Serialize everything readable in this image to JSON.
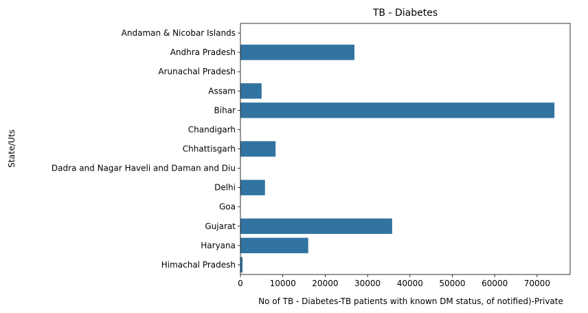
{
  "chart_data": {
    "type": "bar",
    "orientation": "horizontal",
    "title": "TB - Diabetes",
    "xlabel": "No of TB - Diabetes-TB patients with known DM status, of notified)-Private",
    "ylabel": "State/Uts",
    "categories": [
      "Andaman & Nicobar Islands",
      "Andhra Pradesh",
      "Arunachal Pradesh",
      "Assam",
      "Bihar",
      "Chandigarh",
      "Chhattisgarh",
      "Dadra and Nagar Haveli and Daman and Diu",
      "Delhi",
      "Goa",
      "Gujarat",
      "Haryana",
      "Himachal Pradesh"
    ],
    "values": [
      0,
      26900,
      0,
      5000,
      74100,
      0,
      8300,
      0,
      5800,
      0,
      35800,
      16000,
      500
    ],
    "xlim": [
      0,
      77800
    ],
    "xticks": [
      0,
      10000,
      20000,
      30000,
      40000,
      50000,
      60000,
      70000
    ],
    "bar_color": "#3274a1",
    "grid": false,
    "legend": "none"
  }
}
